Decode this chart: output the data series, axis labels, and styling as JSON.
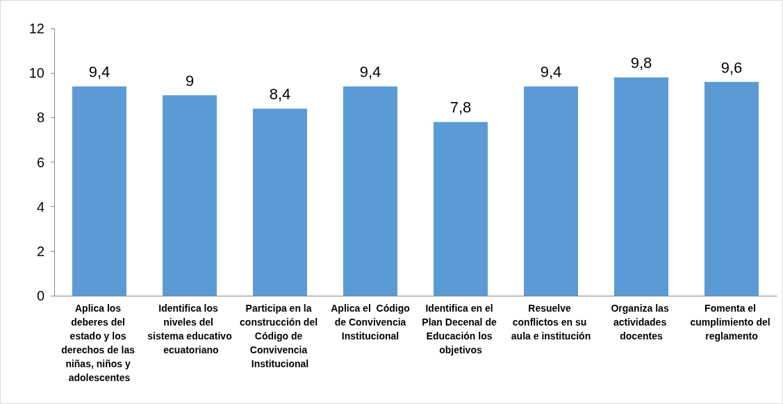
{
  "chart_data": {
    "type": "bar",
    "categories": [
      "Aplica los deberes del estado y los derechos de las niñas, niños y adolescentes",
      "Identifica los niveles del sistema educativo ecuatoriano",
      "Participa en la construcción del Código de Convivencia Institucional",
      "Aplica el  Código de Convivencia Institucional",
      "Identifica en el Plan Decenal de Educación los objetivos",
      "Resuelve conflictos en su aula e institución",
      "Organiza las actividades docentes",
      "Fomenta el cumplimiento del reglamento"
    ],
    "values": [
      9.4,
      9,
      8.4,
      9.4,
      7.8,
      9.4,
      9.8,
      9.6
    ],
    "value_labels": [
      "9,4",
      "9",
      "8,4",
      "9,4",
      "7,8",
      "9,4",
      "9,8",
      "9,6"
    ],
    "color": "#5b9bd5",
    "ylim": [
      0,
      12
    ],
    "yticks": [
      0,
      2,
      4,
      6,
      8,
      10,
      12
    ]
  }
}
